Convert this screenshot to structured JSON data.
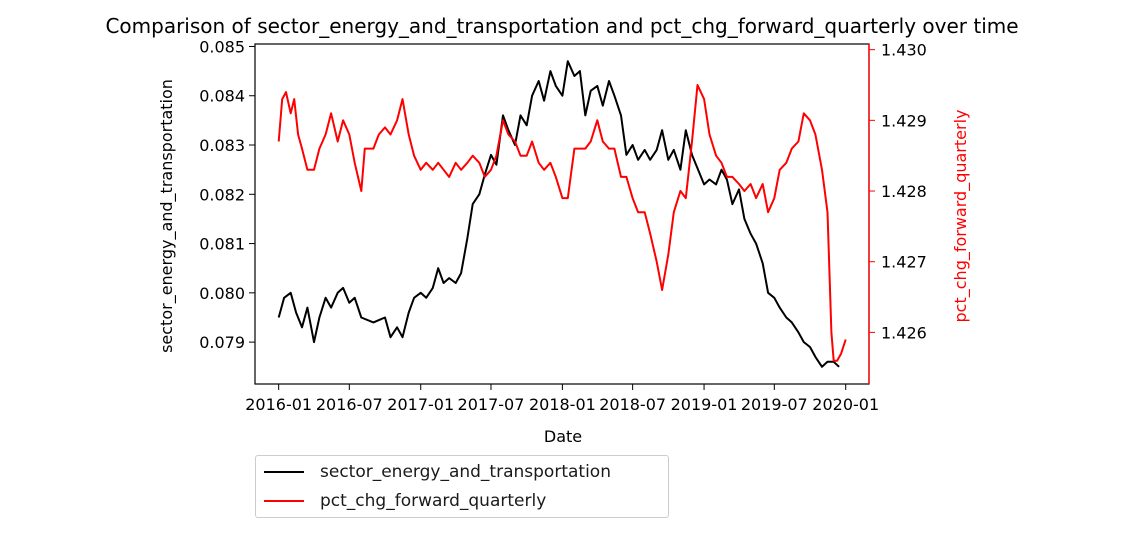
{
  "chart_data": {
    "type": "line",
    "title": "Comparison of sector_energy_and_transportation and pct_chg_forward_quarterly over time",
    "xlabel": "Date",
    "x_ticks": [
      "2016-01",
      "2016-07",
      "2017-01",
      "2017-07",
      "2018-01",
      "2018-07",
      "2019-01",
      "2019-07",
      "2020-01"
    ],
    "xlim": [
      "2015-11",
      "2020-03"
    ],
    "y_left": {
      "label": "sector_energy_and_transportation",
      "ticks": [
        "0.079",
        "0.080",
        "0.081",
        "0.082",
        "0.083",
        "0.084",
        "0.085"
      ],
      "ylim": [
        0.07815,
        0.08505
      ],
      "color": "#000000"
    },
    "y_right": {
      "label": "pct_chg_forward_quarterly",
      "ticks": [
        "1.426",
        "1.427",
        "1.428",
        "1.429",
        "1.430"
      ],
      "ylim": [
        1.42527,
        1.43008
      ],
      "color": "#ff0000"
    },
    "series": [
      {
        "name": "sector_energy_and_transportation",
        "axis": "left",
        "color": "#000000",
        "points": [
          [
            "2016-01",
            0.0795
          ],
          [
            "2016-01-15",
            0.0799
          ],
          [
            "2016-02",
            0.08
          ],
          [
            "2016-02-15",
            0.0796
          ],
          [
            "2016-03",
            0.0793
          ],
          [
            "2016-03-15",
            0.0797
          ],
          [
            "2016-04",
            0.079
          ],
          [
            "2016-04-15",
            0.0795
          ],
          [
            "2016-05",
            0.0799
          ],
          [
            "2016-05-15",
            0.0797
          ],
          [
            "2016-06",
            0.08
          ],
          [
            "2016-06-15",
            0.0801
          ],
          [
            "2016-07",
            0.0798
          ],
          [
            "2016-07-15",
            0.0799
          ],
          [
            "2016-08",
            0.0795
          ],
          [
            "2016-09",
            0.0794
          ],
          [
            "2016-10",
            0.0795
          ],
          [
            "2016-10-15",
            0.0791
          ],
          [
            "2016-11",
            0.0793
          ],
          [
            "2016-11-15",
            0.0791
          ],
          [
            "2016-12",
            0.0796
          ],
          [
            "2016-12-15",
            0.0799
          ],
          [
            "2017-01",
            0.08
          ],
          [
            "2017-01-15",
            0.0799
          ],
          [
            "2017-02",
            0.0801
          ],
          [
            "2017-02-15",
            0.0805
          ],
          [
            "2017-03",
            0.0802
          ],
          [
            "2017-03-15",
            0.0803
          ],
          [
            "2017-04",
            0.0802
          ],
          [
            "2017-04-15",
            0.0804
          ],
          [
            "2017-05",
            0.0811
          ],
          [
            "2017-05-15",
            0.0818
          ],
          [
            "2017-06",
            0.082
          ],
          [
            "2017-06-15",
            0.0824
          ],
          [
            "2017-07",
            0.0828
          ],
          [
            "2017-07-15",
            0.0826
          ],
          [
            "2017-08",
            0.0836
          ],
          [
            "2017-08-15",
            0.0833
          ],
          [
            "2017-09",
            0.083
          ],
          [
            "2017-09-15",
            0.0836
          ],
          [
            "2017-10",
            0.0834
          ],
          [
            "2017-10-15",
            0.084
          ],
          [
            "2017-11",
            0.0843
          ],
          [
            "2017-11-15",
            0.0839
          ],
          [
            "2017-12",
            0.0845
          ],
          [
            "2017-12-15",
            0.0842
          ],
          [
            "2018-01",
            0.084
          ],
          [
            "2018-01-15",
            0.0847
          ],
          [
            "2018-02",
            0.0844
          ],
          [
            "2018-02-15",
            0.0845
          ],
          [
            "2018-03",
            0.0836
          ],
          [
            "2018-03-15",
            0.0841
          ],
          [
            "2018-04",
            0.0842
          ],
          [
            "2018-04-15",
            0.0838
          ],
          [
            "2018-05",
            0.0843
          ],
          [
            "2018-05-15",
            0.084
          ],
          [
            "2018-06",
            0.0836
          ],
          [
            "2018-06-15",
            0.0828
          ],
          [
            "2018-07",
            0.083
          ],
          [
            "2018-07-15",
            0.0827
          ],
          [
            "2018-08",
            0.0829
          ],
          [
            "2018-08-15",
            0.0827
          ],
          [
            "2018-09",
            0.0829
          ],
          [
            "2018-09-15",
            0.0833
          ],
          [
            "2018-10",
            0.0827
          ],
          [
            "2018-10-15",
            0.0829
          ],
          [
            "2018-11",
            0.0825
          ],
          [
            "2018-11-15",
            0.0833
          ],
          [
            "2018-12",
            0.0828
          ],
          [
            "2019-01",
            0.0822
          ],
          [
            "2019-01-15",
            0.0823
          ],
          [
            "2019-02",
            0.0822
          ],
          [
            "2019-02-15",
            0.0825
          ],
          [
            "2019-03",
            0.0823
          ],
          [
            "2019-03-15",
            0.0818
          ],
          [
            "2019-04",
            0.0821
          ],
          [
            "2019-04-15",
            0.0815
          ],
          [
            "2019-05",
            0.0812
          ],
          [
            "2019-05-15",
            0.081
          ],
          [
            "2019-06",
            0.0806
          ],
          [
            "2019-06-15",
            0.08
          ],
          [
            "2019-07",
            0.0799
          ],
          [
            "2019-07-15",
            0.0797
          ],
          [
            "2019-08",
            0.0795
          ],
          [
            "2019-08-15",
            0.0794
          ],
          [
            "2019-09",
            0.0792
          ],
          [
            "2019-09-15",
            0.079
          ],
          [
            "2019-10",
            0.0789
          ],
          [
            "2019-10-15",
            0.0787
          ],
          [
            "2019-11",
            0.0785
          ],
          [
            "2019-11-15",
            0.0786
          ],
          [
            "2019-12",
            0.0786
          ],
          [
            "2019-12-15",
            0.0785
          ]
        ]
      },
      {
        "name": "pct_chg_forward_quarterly",
        "axis": "right",
        "color": "#ff0000",
        "points": [
          [
            "2016-01",
            1.4287
          ],
          [
            "2016-01-10",
            1.4293
          ],
          [
            "2016-01-20",
            1.4294
          ],
          [
            "2016-02",
            1.4291
          ],
          [
            "2016-02-10",
            1.4293
          ],
          [
            "2016-02-20",
            1.4288
          ],
          [
            "2016-03",
            1.4286
          ],
          [
            "2016-03-15",
            1.4283
          ],
          [
            "2016-04",
            1.4283
          ],
          [
            "2016-04-15",
            1.4286
          ],
          [
            "2016-05",
            1.4288
          ],
          [
            "2016-05-15",
            1.4291
          ],
          [
            "2016-06",
            1.4287
          ],
          [
            "2016-06-15",
            1.429
          ],
          [
            "2016-07",
            1.4288
          ],
          [
            "2016-07-15",
            1.4284
          ],
          [
            "2016-08",
            1.428
          ],
          [
            "2016-08-10",
            1.4286
          ],
          [
            "2016-09",
            1.4286
          ],
          [
            "2016-09-15",
            1.4288
          ],
          [
            "2016-10",
            1.4289
          ],
          [
            "2016-10-15",
            1.4288
          ],
          [
            "2016-11",
            1.429
          ],
          [
            "2016-11-15",
            1.4293
          ],
          [
            "2016-12",
            1.4288
          ],
          [
            "2016-12-15",
            1.4285
          ],
          [
            "2017-01",
            1.4283
          ],
          [
            "2017-01-15",
            1.4284
          ],
          [
            "2017-02",
            1.4283
          ],
          [
            "2017-02-15",
            1.4284
          ],
          [
            "2017-03",
            1.4283
          ],
          [
            "2017-03-15",
            1.4282
          ],
          [
            "2017-04",
            1.4284
          ],
          [
            "2017-04-15",
            1.4283
          ],
          [
            "2017-05",
            1.4284
          ],
          [
            "2017-05-15",
            1.4285
          ],
          [
            "2017-06",
            1.4284
          ],
          [
            "2017-06-15",
            1.4282
          ],
          [
            "2017-07",
            1.4283
          ],
          [
            "2017-07-15",
            1.4285
          ],
          [
            "2017-08",
            1.429
          ],
          [
            "2017-08-15",
            1.4288
          ],
          [
            "2017-09",
            1.4287
          ],
          [
            "2017-09-15",
            1.4285
          ],
          [
            "2017-10",
            1.4285
          ],
          [
            "2017-10-15",
            1.4287
          ],
          [
            "2017-11",
            1.4284
          ],
          [
            "2017-11-15",
            1.4283
          ],
          [
            "2017-12",
            1.4284
          ],
          [
            "2017-12-15",
            1.4282
          ],
          [
            "2018-01",
            1.4279
          ],
          [
            "2018-01-15",
            1.4279
          ],
          [
            "2018-02",
            1.4286
          ],
          [
            "2018-02-15",
            1.4286
          ],
          [
            "2018-03",
            1.4286
          ],
          [
            "2018-03-15",
            1.4287
          ],
          [
            "2018-04",
            1.429
          ],
          [
            "2018-04-15",
            1.4287
          ],
          [
            "2018-05",
            1.4286
          ],
          [
            "2018-05-15",
            1.4286
          ],
          [
            "2018-06",
            1.4282
          ],
          [
            "2018-06-15",
            1.4282
          ],
          [
            "2018-07",
            1.4279
          ],
          [
            "2018-07-15",
            1.4277
          ],
          [
            "2018-08",
            1.4277
          ],
          [
            "2018-08-15",
            1.4274
          ],
          [
            "2018-09",
            1.427
          ],
          [
            "2018-09-15",
            1.4266
          ],
          [
            "2018-10",
            1.4271
          ],
          [
            "2018-10-15",
            1.4277
          ],
          [
            "2018-11",
            1.428
          ],
          [
            "2018-11-15",
            1.4279
          ],
          [
            "2018-12",
            1.4287
          ],
          [
            "2018-12-15",
            1.4295
          ],
          [
            "2019-01",
            1.4293
          ],
          [
            "2019-01-15",
            1.4288
          ],
          [
            "2019-02",
            1.4285
          ],
          [
            "2019-02-15",
            1.4284
          ],
          [
            "2019-03",
            1.4282
          ],
          [
            "2019-03-15",
            1.4282
          ],
          [
            "2019-04",
            1.4281
          ],
          [
            "2019-04-15",
            1.428
          ],
          [
            "2019-05",
            1.4281
          ],
          [
            "2019-05-15",
            1.4279
          ],
          [
            "2019-06",
            1.4281
          ],
          [
            "2019-06-15",
            1.4277
          ],
          [
            "2019-07",
            1.4279
          ],
          [
            "2019-07-15",
            1.4283
          ],
          [
            "2019-08",
            1.4284
          ],
          [
            "2019-08-15",
            1.4286
          ],
          [
            "2019-09",
            1.4287
          ],
          [
            "2019-09-15",
            1.4291
          ],
          [
            "2019-10",
            1.429
          ],
          [
            "2019-10-15",
            1.4288
          ],
          [
            "2019-11",
            1.4283
          ],
          [
            "2019-11-15",
            1.4277
          ],
          [
            "2019-11-25",
            1.426
          ],
          [
            "2019-12",
            1.4256
          ],
          [
            "2019-12-10",
            1.4256
          ],
          [
            "2019-12-20",
            1.4257
          ],
          [
            "2020-01",
            1.4259
          ]
        ]
      }
    ],
    "legend": {
      "placement": "below",
      "entries": [
        "sector_energy_and_transportation",
        "pct_chg_forward_quarterly"
      ]
    },
    "grid": false
  }
}
